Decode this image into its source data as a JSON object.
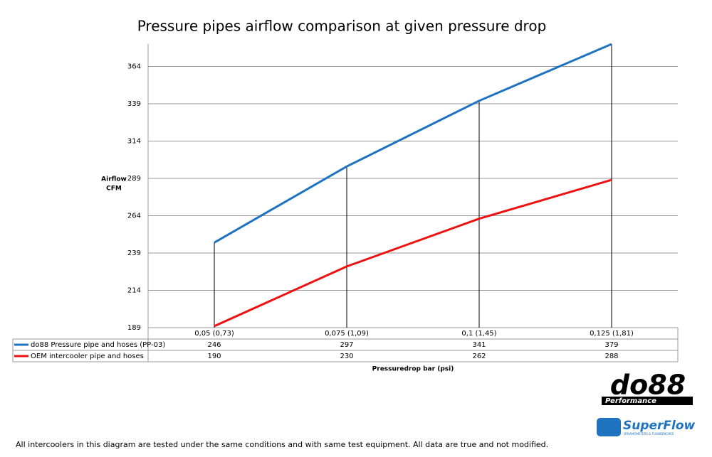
{
  "chart_data": {
    "type": "line",
    "title": "Pressure pipes airflow comparison at given pressure drop",
    "y_label": [
      "Airflow",
      "CFM"
    ],
    "x_label": "Pressuredrop bar (psi)",
    "categories": [
      "0,05 (0,73)",
      "0,075 (1,09)",
      "0,1 (1,45)",
      "0,125 (1,81)"
    ],
    "series": [
      {
        "name": "do88 Pressure pipe and hoses (PP-03)",
        "color": "#1f72c0",
        "values": [
          246,
          297,
          341,
          379
        ]
      },
      {
        "name": "OEM intercooler pipe and hoses",
        "color": "#ee1111",
        "values": [
          190,
          230,
          262,
          288
        ]
      }
    ],
    "ylim": [
      189,
      379
    ],
    "yticks": [
      189,
      214,
      239,
      264,
      289,
      314,
      339,
      364
    ],
    "grid": true,
    "drop_lines": true
  },
  "logos": {
    "do88": "do88",
    "do88_sub": "Performance",
    "superflow": "SuperFlow",
    "superflow_sub": "DYNAMOMETERS & FLOWBENCHES"
  },
  "footer": "All intercoolers in this diagram are tested under the same conditions and with same test equipment. All data are true and not modified."
}
